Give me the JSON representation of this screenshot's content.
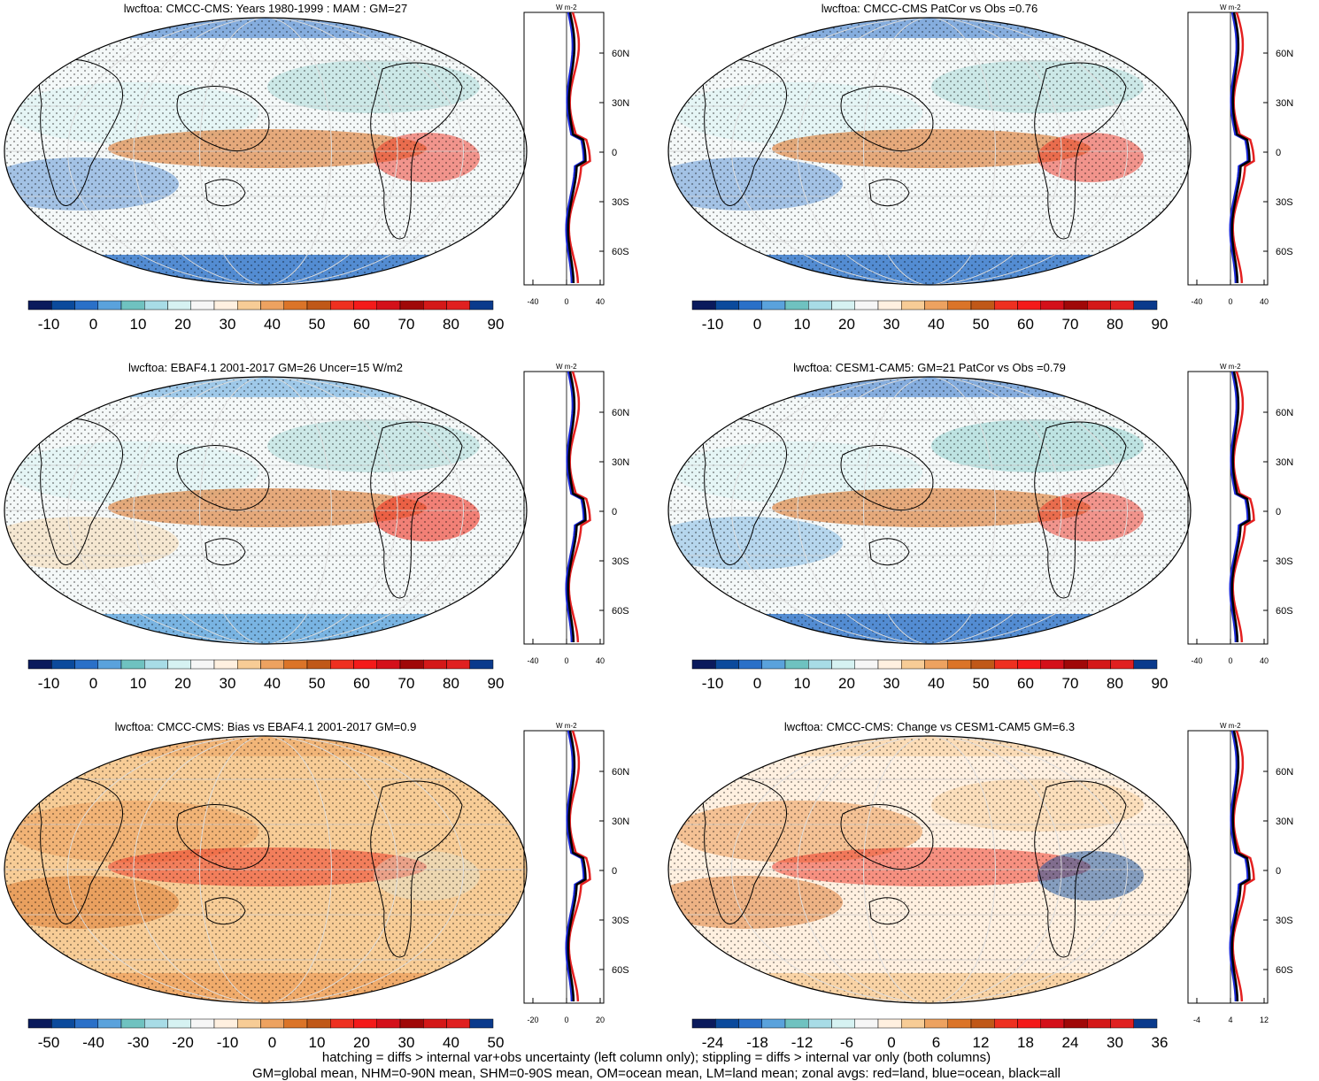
{
  "panels": [
    {
      "title": "lwcftoa: CMCC-CMS: Years 1980-1999 : MAM : GM=27",
      "colorbar": {
        "ticks": [
          "-10",
          "0",
          "10",
          "20",
          "30",
          "40",
          "50",
          "60",
          "70",
          "80",
          "90"
        ]
      },
      "zonal": {
        "xticks": [
          "-40",
          "0",
          "40"
        ],
        "yticks": [
          "60N",
          "30N",
          "0",
          "30S",
          "60S"
        ],
        "units": "W m-2"
      }
    },
    {
      "title": "lwcftoa: CMCC-CMS PatCor vs Obs =0.76",
      "colorbar": {
        "ticks": [
          "-10",
          "0",
          "10",
          "20",
          "30",
          "40",
          "50",
          "60",
          "70",
          "80",
          "90"
        ]
      },
      "zonal": {
        "xticks": [
          "-40",
          "0",
          "40"
        ],
        "yticks": [
          "60N",
          "30N",
          "0",
          "30S",
          "60S"
        ],
        "units": "W m-2"
      }
    },
    {
      "title": "lwcftoa: EBAF4.1 2001-2017 GM=26 Uncer=15 W/m2",
      "colorbar": {
        "ticks": [
          "-10",
          "0",
          "10",
          "20",
          "30",
          "40",
          "50",
          "60",
          "70",
          "80",
          "90"
        ]
      },
      "zonal": {
        "xticks": [
          "-40",
          "0",
          "40"
        ],
        "yticks": [
          "60N",
          "30N",
          "0",
          "30S",
          "60S"
        ],
        "units": "W m-2"
      }
    },
    {
      "title": "lwcftoa: CESM1-CAM5: GM=21 PatCor vs Obs =0.79",
      "colorbar": {
        "ticks": [
          "-10",
          "0",
          "10",
          "20",
          "30",
          "40",
          "50",
          "60",
          "70",
          "80",
          "90"
        ]
      },
      "zonal": {
        "xticks": [
          "-40",
          "0",
          "40"
        ],
        "yticks": [
          "60N",
          "30N",
          "0",
          "30S",
          "60S"
        ],
        "units": "W m-2"
      }
    },
    {
      "title": "lwcftoa: CMCC-CMS: Bias vs EBAF4.1 2001-2017 GM=0.9",
      "colorbar": {
        "ticks": [
          "-50",
          "-40",
          "-30",
          "-20",
          "-10",
          "0",
          "10",
          "20",
          "30",
          "40",
          "50"
        ]
      },
      "zonal": {
        "xticks": [
          "-20",
          "0",
          "20"
        ],
        "yticks": [
          "60N",
          "30N",
          "0",
          "30S",
          "60S"
        ],
        "units": "W m-2"
      }
    },
    {
      "title": "lwcftoa: CMCC-CMS: Change vs CESM1-CAM5 GM=6.3",
      "colorbar": {
        "ticks": [
          "-24",
          "-18",
          "-12",
          "-6",
          "0",
          "6",
          "12",
          "18",
          "24",
          "30",
          "36"
        ]
      },
      "zonal": {
        "xticks": [
          "-4",
          "4",
          "12"
        ],
        "yticks": [
          "60N",
          "30N",
          "0",
          "30S",
          "60S"
        ],
        "units": "W m-2"
      }
    }
  ],
  "footnotes": [
    "hatching = diffs > internal var+obs uncertainty (left column only); stippling = diffs > internal var only (both columns)",
    "GM=global mean, NHM=0-90N mean, SHM=0-90S mean, OM=ocean mean, LM=land mean; zonal avgs: red=land, blue=ocean, black=all"
  ],
  "colors": {
    "palette": [
      "#0a1a5c",
      "#0b4a9c",
      "#2a70c8",
      "#5aa2dc",
      "#6fc2c0",
      "#a8dce6",
      "#d6f2f2",
      "#f6f6f6",
      "#fff0e0",
      "#f7cc96",
      "#eda260",
      "#db7428",
      "#c05818",
      "#ee3020",
      "#f41a1a",
      "#d4101a",
      "#a00808",
      "#d41818",
      "#e02020",
      "#0a3a8c"
    ],
    "land_line": "#e42020",
    "ocean_line": "#1a28d8",
    "all_line": "#000000"
  }
}
